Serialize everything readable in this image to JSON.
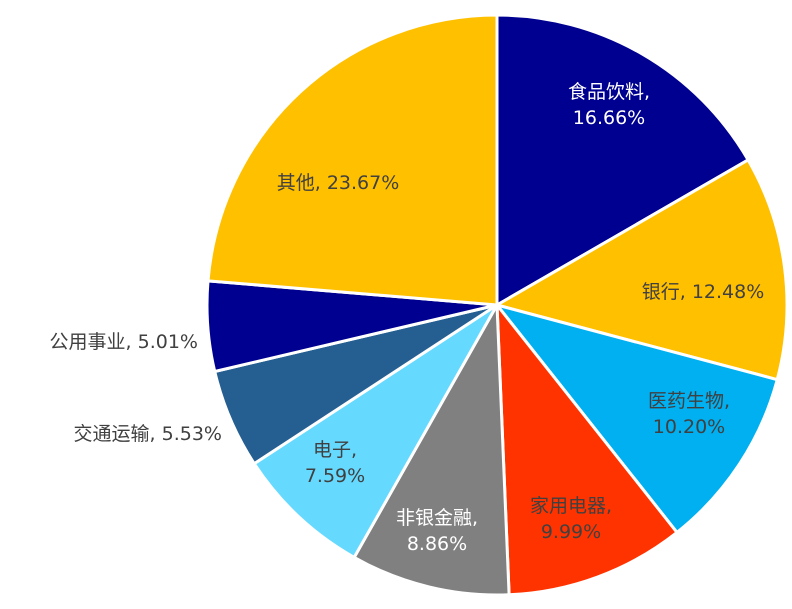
{
  "chart_data": {
    "type": "pie",
    "title": "",
    "slices": [
      {
        "label": "食品饮料",
        "value": 16.66,
        "text_line1": "食品饮料,",
        "text_line2": "16.66%",
        "color": "#000090",
        "text_color": "#ffffff",
        "label_position": "inside"
      },
      {
        "label": "银行",
        "value": 12.48,
        "text_line1": "银行, 12.48%",
        "text_line2": "",
        "color": "#FFC000",
        "text_color": "#404040",
        "label_position": "inside"
      },
      {
        "label": "医药生物",
        "value": 10.2,
        "text_line1": "医药生物,",
        "text_line2": "10.20%",
        "color": "#00B0F0",
        "text_color": "#404040",
        "label_position": "inside"
      },
      {
        "label": "家用电器",
        "value": 9.99,
        "text_line1": "家用电器,",
        "text_line2": "9.99%",
        "color": "#FF3300",
        "text_color": "#404040",
        "label_position": "inside"
      },
      {
        "label": "非银金融",
        "value": 8.86,
        "text_line1": "非银金融,",
        "text_line2": "8.86%",
        "color": "#808080",
        "text_color": "#ffffff",
        "label_position": "inside"
      },
      {
        "label": "电子",
        "value": 7.59,
        "text_line1": "电子,",
        "text_line2": "7.59%",
        "color": "#66D9FF",
        "text_color": "#404040",
        "label_position": "inside"
      },
      {
        "label": "交通运输",
        "value": 5.53,
        "text_line1": "交通运输, 5.53%",
        "text_line2": "",
        "color": "#255E91",
        "text_color": "#404040",
        "label_position": "outside"
      },
      {
        "label": "公用事业",
        "value": 5.01,
        "text_line1": "公用事业, 5.01%",
        "text_line2": "",
        "color": "#000090",
        "text_color": "#404040",
        "label_position": "outside"
      },
      {
        "label": "其他",
        "value": 23.67,
        "text_line1": "其他, 23.67%",
        "text_line2": "",
        "color": "#FFC000",
        "text_color": "#404040",
        "label_position": "inside"
      }
    ]
  }
}
